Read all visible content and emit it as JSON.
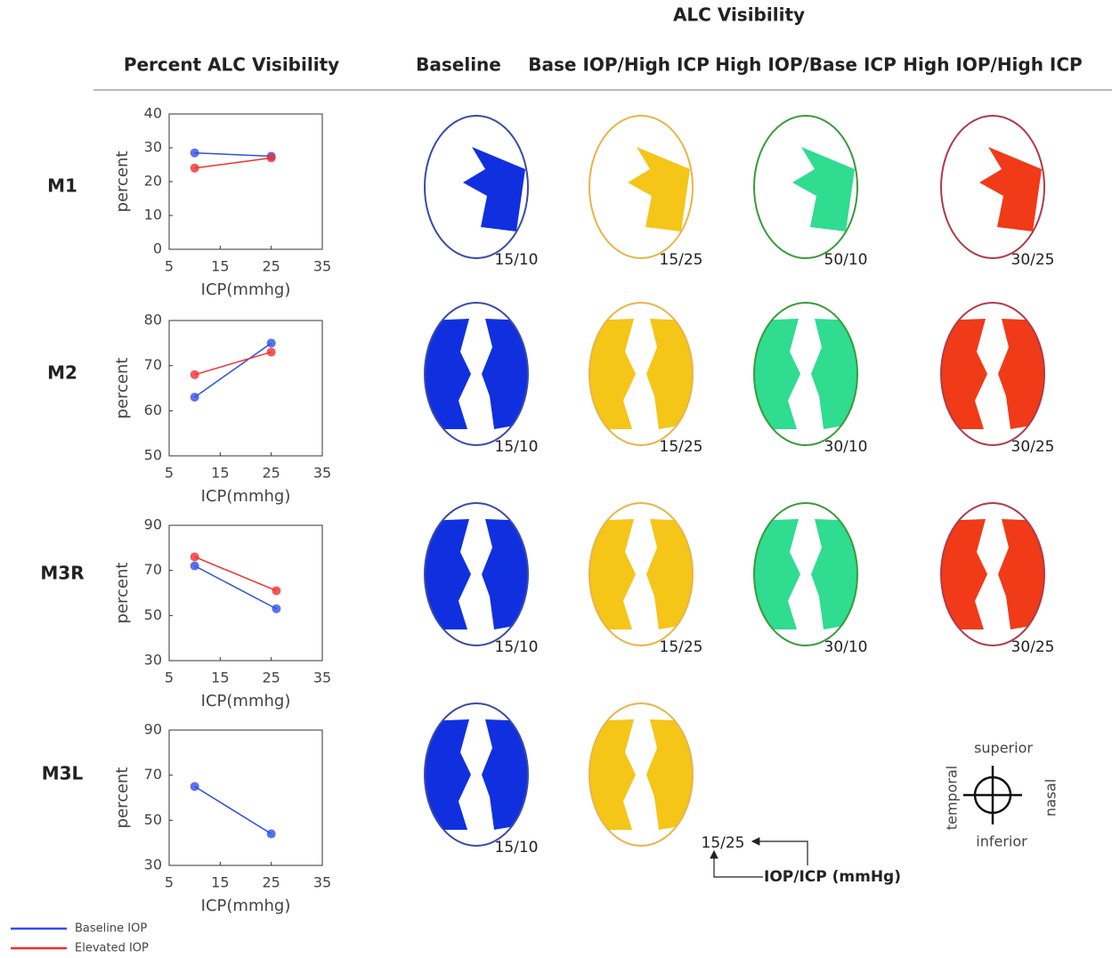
{
  "header": {
    "title": "ALC Visibility",
    "left_title": "Percent ALC Visibility",
    "columns": [
      "Baseline",
      "Base IOP/High ICP",
      "High IOP/Base ICP",
      "High IOP/High ICP"
    ]
  },
  "rows": [
    {
      "label": "M1",
      "images": [
        "15/10",
        "15/25",
        "50/10",
        "30/25"
      ]
    },
    {
      "label": "M2",
      "images": [
        "15/10",
        "15/25",
        "30/10",
        "30/25"
      ]
    },
    {
      "label": "M3R",
      "images": [
        "15/10",
        "15/25",
        "30/10",
        "30/25"
      ]
    },
    {
      "label": "M3L",
      "images": [
        "15/10",
        "15/25"
      ]
    }
  ],
  "orientation": {
    "superior": "superior",
    "inferior": "inferior",
    "temporal": "temporal",
    "nasal": "nasal"
  },
  "annotation": "IOP/ICP (mmHg)",
  "chart_data": [
    {
      "type": "line",
      "x_label": "ICP(mmhg)",
      "y_label": "percent",
      "xlim": [
        5,
        35
      ],
      "xticks": [
        5,
        15,
        25,
        35
      ],
      "ylim": [
        0,
        40
      ],
      "yticks": [
        0,
        10,
        20,
        30,
        40
      ],
      "series": [
        {
          "name": "Baseline IOP",
          "color": "#2f4fe8",
          "x": [
            10,
            25
          ],
          "values": [
            28.5,
            27.5
          ]
        },
        {
          "name": "Elevated IOP",
          "color": "#f03030",
          "x": [
            10,
            25
          ],
          "values": [
            24,
            27
          ]
        }
      ]
    },
    {
      "type": "line",
      "x_label": "ICP(mmhg)",
      "y_label": "percent",
      "xlim": [
        5,
        35
      ],
      "xticks": [
        5,
        15,
        25,
        35
      ],
      "ylim": [
        50,
        80
      ],
      "yticks": [
        50,
        60,
        70,
        80
      ],
      "series": [
        {
          "name": "Baseline IOP",
          "color": "#2f4fe8",
          "x": [
            10,
            25
          ],
          "values": [
            63,
            75
          ]
        },
        {
          "name": "Elevated IOP",
          "color": "#f03030",
          "x": [
            10,
            25
          ],
          "values": [
            68,
            73
          ]
        }
      ]
    },
    {
      "type": "line",
      "x_label": "ICP(mmhg)",
      "y_label": "percent",
      "xlim": [
        5,
        35
      ],
      "xticks": [
        5,
        15,
        25,
        35
      ],
      "ylim": [
        30,
        90
      ],
      "yticks": [
        30,
        50,
        70,
        90
      ],
      "series": [
        {
          "name": "Baseline IOP",
          "color": "#2f4fe8",
          "x": [
            10,
            26
          ],
          "values": [
            72,
            53
          ]
        },
        {
          "name": "Elevated IOP",
          "color": "#f03030",
          "x": [
            10,
            26
          ],
          "values": [
            76,
            61
          ]
        }
      ]
    },
    {
      "type": "line",
      "x_label": "ICP(mmhg)",
      "y_label": "percent",
      "xlim": [
        5,
        35
      ],
      "xticks": [
        5,
        15,
        25,
        35
      ],
      "ylim": [
        30,
        90
      ],
      "yticks": [
        30,
        50,
        70,
        90
      ],
      "series": [
        {
          "name": "Baseline IOP",
          "color": "#2f4fe8",
          "x": [
            10,
            25
          ],
          "values": [
            65,
            44
          ]
        }
      ]
    }
  ]
}
